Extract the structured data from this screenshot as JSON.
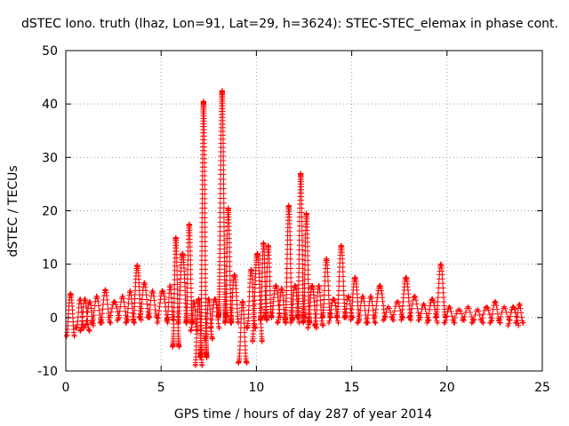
{
  "chart_data": {
    "type": "scatter",
    "title": "dSTEC Iono. truth (lhaz, Lon=91, Lat=29, h=3624): STEC-STEC_elemax in phase cont.",
    "xlabel": "GPS time / hours of day 287 of year 2014",
    "ylabel": "dSTEC  / TECUs",
    "xlim": [
      0,
      25
    ],
    "ylim": [
      -10,
      50
    ],
    "xticks": [
      "0",
      "5",
      "10",
      "15",
      "20",
      "25"
    ],
    "yticks": [
      "-10",
      "0",
      "10",
      "20",
      "30",
      "40",
      "50"
    ],
    "xtick_values": [
      0,
      5,
      10,
      15,
      20,
      25
    ],
    "ytick_values": [
      -10,
      0,
      10,
      20,
      30,
      40,
      50
    ],
    "grid": true,
    "marker": "+",
    "color": "#ff0000",
    "arcs": [
      [
        0.05,
        0.45,
        -3.5,
        4.5
      ],
      [
        0.55,
        0.95,
        -2.0,
        3.5
      ],
      [
        0.75,
        1.25,
        -2.5,
        3.5
      ],
      [
        1.05,
        1.45,
        -1.5,
        3.0
      ],
      [
        1.35,
        1.9,
        -1.0,
        4.0
      ],
      [
        1.8,
        2.35,
        -1.0,
        5.2
      ],
      [
        2.3,
        2.8,
        0.0,
        3.0
      ],
      [
        2.7,
        3.25,
        -0.5,
        4.0
      ],
      [
        3.15,
        3.6,
        -1.0,
        5.0
      ],
      [
        3.55,
        3.95,
        -0.5,
        9.8
      ],
      [
        3.85,
        4.4,
        0.0,
        6.5
      ],
      [
        4.3,
        4.8,
        0.0,
        5.0
      ],
      [
        4.8,
        5.35,
        -1.0,
        5.0
      ],
      [
        5.3,
        5.65,
        -0.5,
        6.0
      ],
      [
        5.6,
        5.95,
        -5.5,
        15.0
      ],
      [
        5.9,
        6.35,
        -1.0,
        12.0
      ],
      [
        6.3,
        6.65,
        -1.0,
        17.5
      ],
      [
        6.55,
        6.9,
        -2.5,
        3.0
      ],
      [
        6.8,
        7.15,
        -9.0,
        3.5
      ],
      [
        7.05,
        7.4,
        -7.5,
        40.5
      ],
      [
        7.3,
        7.7,
        -4.0,
        3.5
      ],
      [
        7.6,
        8.05,
        -2.0,
        3.5
      ],
      [
        8.0,
        8.4,
        0.0,
        42.5
      ],
      [
        8.35,
        8.7,
        -1.0,
        20.5
      ],
      [
        8.65,
        9.05,
        -1.0,
        8.0
      ],
      [
        9.05,
        9.5,
        -8.5,
        3.0
      ],
      [
        9.5,
        9.95,
        -2.0,
        9.0
      ],
      [
        9.8,
        10.3,
        -4.5,
        12.0
      ],
      [
        10.2,
        10.55,
        -0.5,
        14.0
      ],
      [
        10.45,
        10.8,
        0.0,
        13.5
      ],
      [
        10.8,
        11.25,
        0.0,
        6.0
      ],
      [
        11.1,
        11.55,
        -1.0,
        5.5
      ],
      [
        11.5,
        11.9,
        -0.5,
        21.0
      ],
      [
        11.8,
        12.25,
        -1.0,
        6.0
      ],
      [
        12.15,
        12.5,
        0.0,
        27.0
      ],
      [
        12.45,
        12.8,
        -1.0,
        19.5
      ],
      [
        12.7,
        13.15,
        -2.0,
        6.0
      ],
      [
        13.05,
        13.5,
        -1.5,
        6.0
      ],
      [
        13.45,
        13.9,
        0.0,
        11.0
      ],
      [
        13.8,
        14.3,
        -1.0,
        3.5
      ],
      [
        14.2,
        14.7,
        0.0,
        13.5
      ],
      [
        14.6,
        15.05,
        0.0,
        4.0
      ],
      [
        14.95,
        15.4,
        -0.5,
        7.5
      ],
      [
        15.3,
        15.85,
        -1.0,
        4.0
      ],
      [
        15.75,
        16.25,
        -1.0,
        4.0
      ],
      [
        16.2,
        16.75,
        0.0,
        6.0
      ],
      [
        16.65,
        17.2,
        -0.5,
        2.0
      ],
      [
        17.1,
        17.7,
        0.0,
        3.0
      ],
      [
        17.6,
        18.1,
        -0.5,
        7.5
      ],
      [
        18.0,
        18.6,
        0.0,
        4.0
      ],
      [
        18.5,
        19.05,
        -0.5,
        2.5
      ],
      [
        18.95,
        19.5,
        -1.0,
        3.5
      ],
      [
        19.4,
        19.95,
        0.0,
        10.0
      ],
      [
        19.85,
        20.4,
        -1.0,
        2.0
      ],
      [
        20.35,
        20.9,
        -0.5,
        1.5
      ],
      [
        20.8,
        21.4,
        -0.5,
        2.0
      ],
      [
        21.3,
        21.9,
        -1.0,
        1.5
      ],
      [
        21.8,
        22.35,
        -0.5,
        2.0
      ],
      [
        22.25,
        22.8,
        -1.0,
        3.0
      ],
      [
        22.7,
        23.3,
        -0.5,
        2.0
      ],
      [
        23.2,
        23.75,
        -1.5,
        2.0
      ],
      [
        23.6,
        24.0,
        -1.0,
        2.5
      ]
    ]
  }
}
